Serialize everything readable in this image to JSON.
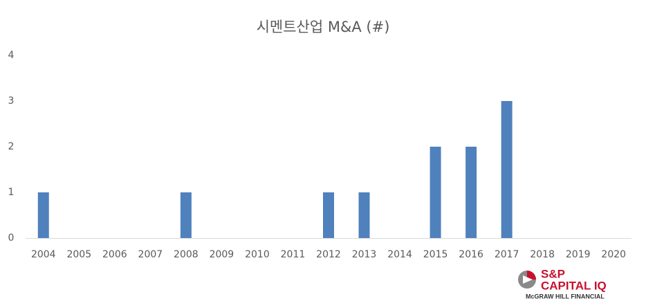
{
  "chart_data": {
    "type": "bar",
    "title": "시멘트산업 M&A (#)",
    "categories": [
      "2004",
      "2005",
      "2006",
      "2007",
      "2008",
      "2009",
      "2010",
      "2011",
      "2012",
      "2013",
      "2014",
      "2015",
      "2016",
      "2017",
      "2018",
      "2019",
      "2020"
    ],
    "values": [
      1,
      0,
      0,
      0,
      1,
      0,
      0,
      0,
      1,
      1,
      0,
      2,
      2,
      3,
      0,
      0,
      0
    ],
    "color": "#4f81bd",
    "ylim": [
      0,
      4
    ],
    "yticks": [
      0,
      1,
      2,
      3,
      4
    ],
    "grid": false
  },
  "logo": {
    "line1": "S&P",
    "line2": "CAPITAL IQ",
    "line3": "McGRAW HILL FINANCIAL"
  }
}
